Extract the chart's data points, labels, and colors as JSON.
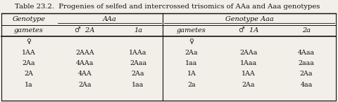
{
  "title": "Table 23.2.  Progenies of selfed and intercrossed trisomics of AAa and Aaa genotypes",
  "hdr1": [
    "Genotype",
    "AAa",
    "Genotype Aaa"
  ],
  "hdr2": [
    "gametes",
    "♂  2A",
    "1a",
    "gametes",
    "♂  1A",
    "2a"
  ],
  "rows": [
    [
      "♀",
      "",
      "",
      "♀",
      "",
      ""
    ],
    [
      "1AA",
      "2AAA",
      "1AAa",
      "2Aa",
      "2AAa",
      "4Aaa"
    ],
    [
      "2Aa",
      "4AAa",
      "2Aaa",
      "1aa",
      "1Aaa",
      "2aaa"
    ],
    [
      "2A",
      "4AA",
      "2Aa",
      "1A",
      "1AA",
      "2Aa"
    ],
    [
      "1a",
      "2Aa",
      "1aa",
      "2a",
      "2Aa",
      "4aa"
    ]
  ],
  "bg_color": "#f2efe9",
  "line_color": "#111111",
  "title_fontsize": 7.2,
  "cell_fontsize": 6.8,
  "header_fontsize": 7.0
}
